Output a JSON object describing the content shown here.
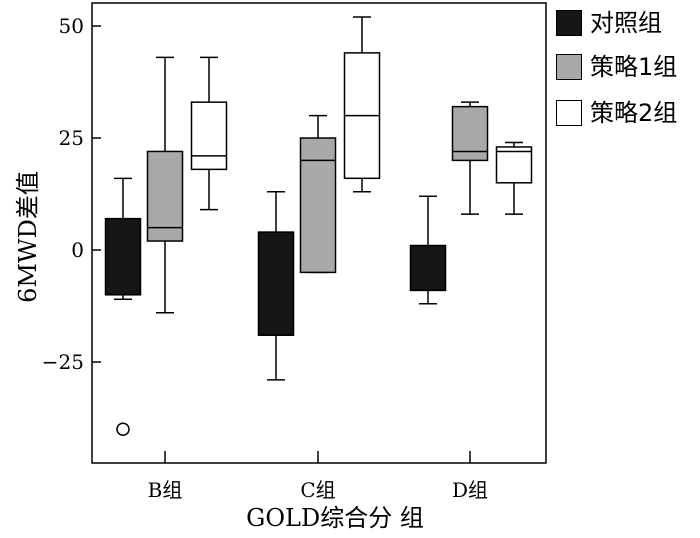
{
  "chart_data": {
    "type": "box",
    "title": "",
    "xlabel": "GOLD综合分 组",
    "ylabel": "6MWD差值",
    "categories": [
      "B组",
      "C组",
      "D组"
    ],
    "yticks": [
      50,
      25,
      0,
      -25
    ],
    "ytick_labels": [
      "50",
      "25",
      "0",
      "−25"
    ],
    "ylim": [
      -45,
      55
    ],
    "grid": false,
    "legend_position": "top-right",
    "series": [
      {
        "name": "对照组",
        "color": "#161616",
        "boxes": [
          {
            "min": -11,
            "q1": -10,
            "median": -10,
            "q3": 7,
            "max": 16
          },
          {
            "min": -29,
            "q1": -19,
            "median": -19,
            "q3": 4,
            "max": 13
          },
          {
            "min": -12,
            "q1": -9,
            "median": -9,
            "q3": 1,
            "max": 12
          }
        ]
      },
      {
        "name": "策略1组",
        "color": "#a9a9a9",
        "boxes": [
          {
            "min": -14,
            "q1": 2,
            "median": 5,
            "q3": 22,
            "max": 43
          },
          {
            "min": -5,
            "q1": -5,
            "median": 20,
            "q3": 25,
            "max": 30
          },
          {
            "min": 8,
            "q1": 20,
            "median": 22,
            "q3": 32,
            "max": 33
          }
        ]
      },
      {
        "name": "策略2组",
        "color": "#ffffff",
        "boxes": [
          {
            "min": 9,
            "q1": 18,
            "median": 21,
            "q3": 33,
            "max": 43
          },
          {
            "min": 13,
            "q1": 16,
            "median": 30,
            "q3": 44,
            "max": 52
          },
          {
            "min": 8,
            "q1": 15,
            "median": 22,
            "q3": 23,
            "max": 24
          }
        ]
      }
    ],
    "outliers": [
      {
        "category": "B组",
        "series": "对照组",
        "value": -40
      }
    ]
  }
}
